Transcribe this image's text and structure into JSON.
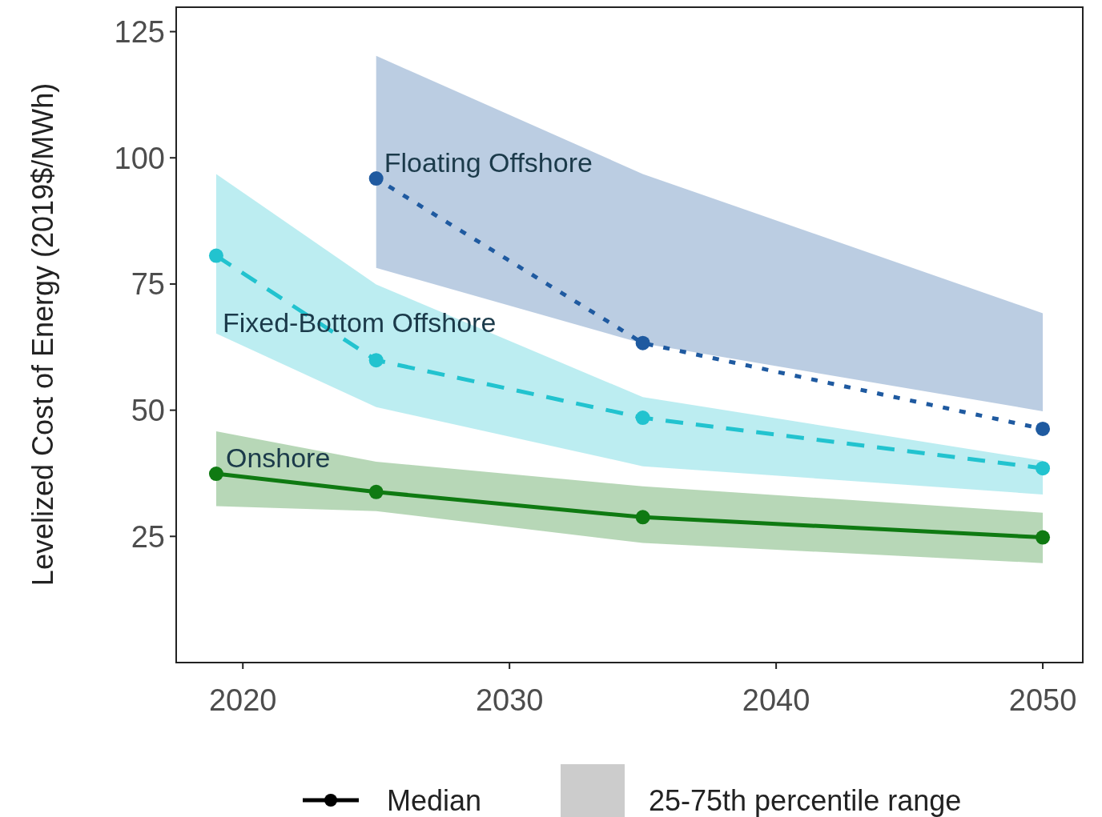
{
  "chart_data": {
    "type": "line",
    "ylabel": "Levelized Cost of Energy (2019$/MWh)",
    "x": [
      2019,
      2025,
      2035,
      2050
    ],
    "xlim": [
      2017.5,
      2051.5
    ],
    "xticks": [
      2020,
      2030,
      2040,
      2050
    ],
    "ylim": [
      0,
      130
    ],
    "yticks": [
      25,
      50,
      75,
      100,
      125
    ],
    "grid": false,
    "marker": "circle",
    "series": [
      {
        "name": "Floating Offshore",
        "color": "#1f5aa0",
        "line_style": "dotted",
        "x": [
          2025,
          2035,
          2050
        ],
        "values": [
          95.9,
          63.3,
          46.3
        ],
        "lower": [
          78.2,
          63.2,
          49.8
        ],
        "upper": [
          120.2,
          96.8,
          69.2
        ]
      },
      {
        "name": "Fixed-Bottom Offshore",
        "color": "#22c3cf",
        "line_style": "dashed",
        "values": [
          80.6,
          59.9,
          48.5,
          38.5
        ],
        "lower": [
          65.2,
          50.6,
          38.9,
          33.3
        ],
        "upper": [
          96.8,
          74.9,
          52.6,
          40
        ]
      },
      {
        "name": "Onshore",
        "color": "#0f7a12",
        "line_style": "solid",
        "values": [
          37.4,
          33.8,
          28.8,
          24.8
        ],
        "lower": [
          31,
          30,
          23.7,
          19.7
        ],
        "upper": [
          45.8,
          39.8,
          34.9,
          29.7
        ]
      }
    ],
    "annotations": [
      "Median",
      "25-75th percentile range"
    ]
  }
}
